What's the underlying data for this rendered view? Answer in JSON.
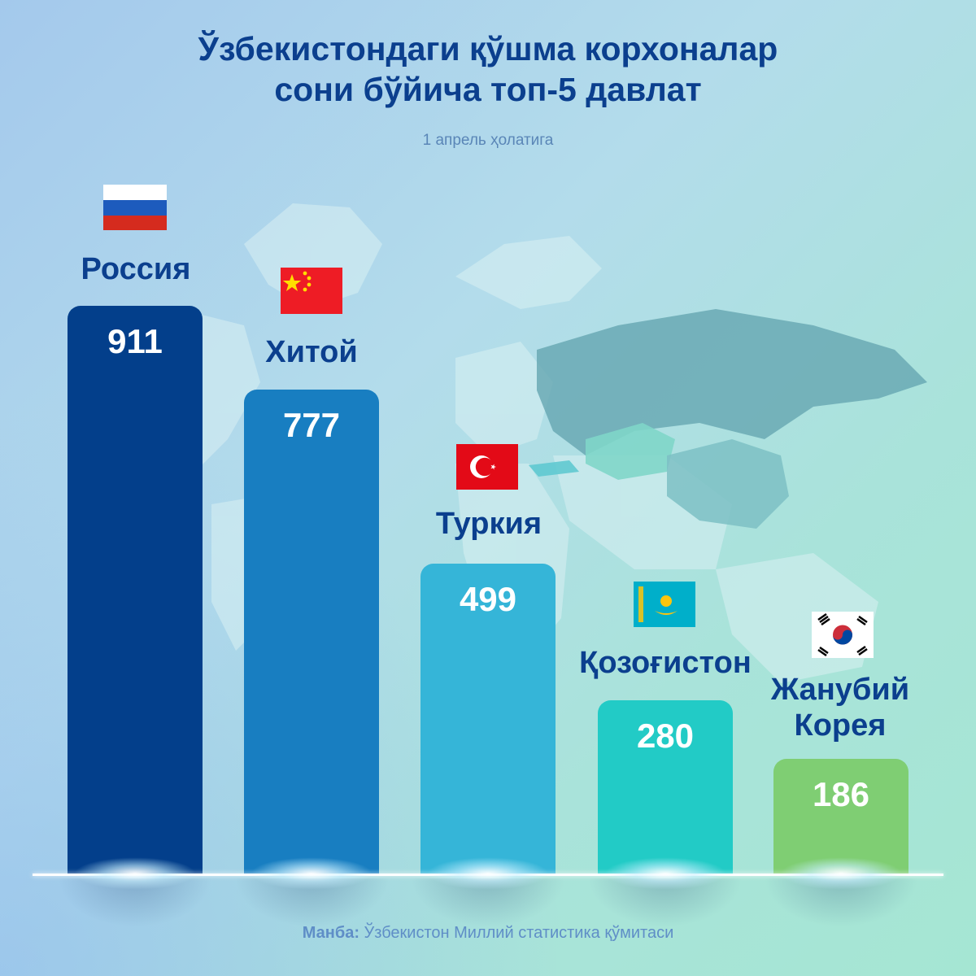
{
  "header": {
    "title_line1": "Ўзбекистондаги қўшма корхоналар",
    "title_line2": "сони бўйича топ-5 давлат",
    "subtitle": "1 апрель ҳолатига"
  },
  "footer": {
    "source_label": "Манба:",
    "source_text": " Ўзбекистон Миллий статистика қўмитаси"
  },
  "colors": {
    "title": "#0b3f8e",
    "bars": [
      "#033f8b",
      "#187ec1",
      "#35b5d8",
      "#22cbc6",
      "#7fce73"
    ]
  },
  "chart_data": {
    "type": "bar",
    "title": "Ўзбекистондаги қўшма корхоналар сони бўйича топ-5 давлат",
    "subtitle": "1 апрель ҳолатига",
    "categories": [
      "Россия",
      "Хитой",
      "Туркия",
      "Қозоғистон",
      "Жанубий Корея"
    ],
    "label_lines": [
      [
        "Россия"
      ],
      [
        "Хитой"
      ],
      [
        "Туркия"
      ],
      [
        "Қозоғистон"
      ],
      [
        "Жанубий",
        "Корея"
      ]
    ],
    "values": [
      911,
      777,
      499,
      280,
      186
    ],
    "value_labels": [
      "911",
      "777",
      "499",
      "280",
      "186"
    ],
    "flags": [
      "russia-flag-icon",
      "china-flag-icon",
      "turkey-flag-icon",
      "kazakhstan-flag-icon",
      "south-korea-flag-icon"
    ],
    "xlabel": "",
    "ylabel": "",
    "ylim": [
      0,
      911
    ],
    "grid": false,
    "legend": "none"
  }
}
